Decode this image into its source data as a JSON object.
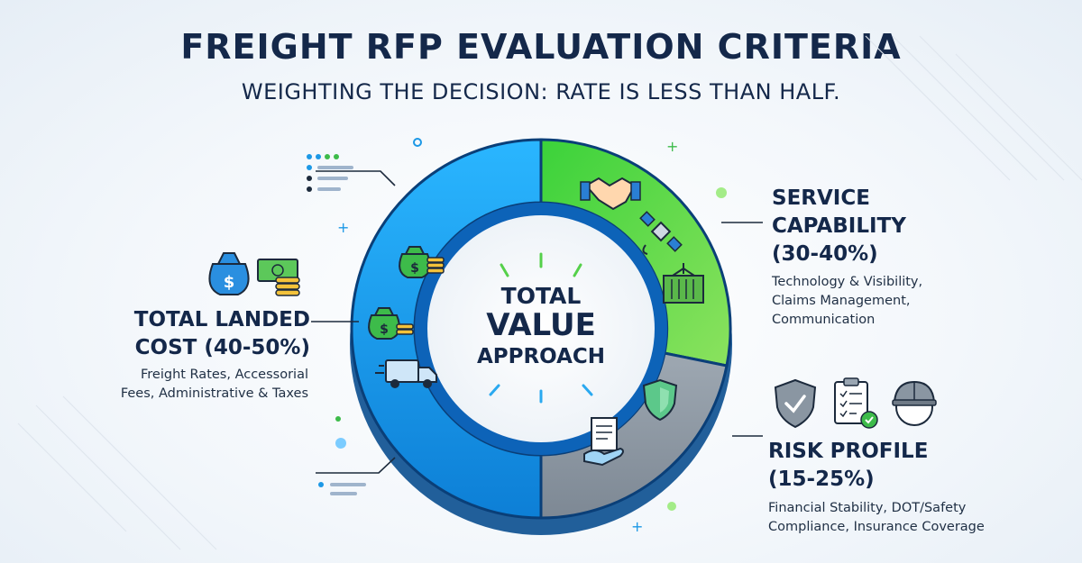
{
  "title": "FREIGHT RFP EVALUATION CRITERIA",
  "subtitle": "WEIGHTING THE DECISION: RATE IS LESS THAN HALF.",
  "center": {
    "line1": "TOTAL",
    "line2": "VALUE",
    "line3": "APPROACH"
  },
  "segments": [
    {
      "key": "cost",
      "heading_line1": "TOTAL LANDED",
      "heading_line2": "COST (40-50%)",
      "desc_line1": "Freight Rates, Accessorial",
      "desc_line2": "Fees, Administrative & Taxes",
      "color": "#1aa0f0",
      "icons": [
        "money-bag-icon",
        "cash-coins-icon",
        "truck-icon"
      ]
    },
    {
      "key": "service",
      "heading_line1": "SERVICE",
      "heading_line2": "CAPABILITY",
      "heading_line3": "(30-40%)",
      "desc_line1": "Technology & Visibility,",
      "desc_line2": "Claims Management,",
      "desc_line3": "Communication",
      "color": "#4fcf3c",
      "icons": [
        "handshake-icon",
        "satellite-icon",
        "container-icon"
      ]
    },
    {
      "key": "risk",
      "heading_line1": "RISK PROFILE",
      "heading_line2": "(15-25%)",
      "desc_line1": "Financial Stability, DOT/Safety",
      "desc_line2": "Compliance, Insurance Coverage",
      "color": "#8f9aa6",
      "icons": [
        "shield-icon",
        "contract-icon",
        "checklist-icon",
        "hard-hat-icon"
      ]
    }
  ]
}
